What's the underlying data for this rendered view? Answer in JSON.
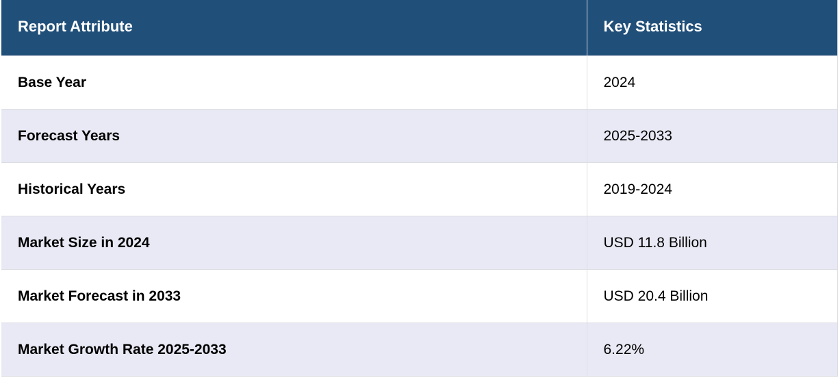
{
  "table": {
    "header": [
      "Report Attribute",
      "Key Statistics"
    ],
    "rows": [
      [
        "Base Year",
        "2024"
      ],
      [
        "Forecast Years",
        "2025-2033"
      ],
      [
        "Historical Years",
        "2019-2024"
      ],
      [
        "Market Size in 2024",
        "USD 11.8 Billion"
      ],
      [
        "Market Forecast in 2033",
        "USD 20.4 Billion"
      ],
      [
        "Market Growth Rate 2025-2033",
        "6.22%"
      ]
    ]
  }
}
